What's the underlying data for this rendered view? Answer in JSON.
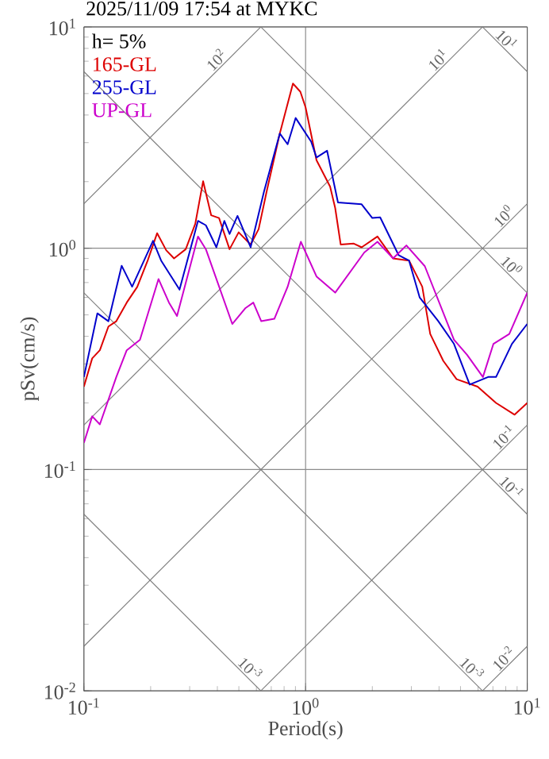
{
  "chart_data": {
    "type": "line",
    "title": "2025/11/09 17:54 at MYKC",
    "xlabel": "Period(s)",
    "ylabel": "pSv(cm/s)",
    "log": "xy",
    "grid": true,
    "legend": "top left",
    "xlim": [
      0.1,
      10
    ],
    "ylim": [
      0.01,
      10
    ],
    "xticks": [
      {
        "value": 0.1,
        "label": "10$^{-1}$"
      },
      {
        "value": 1,
        "label": "10$^{0}$"
      },
      {
        "value": 10,
        "label": "10$^{1}$"
      }
    ],
    "yticks": [
      {
        "value": 0.01,
        "label": "10$^{-2}$"
      },
      {
        "value": 0.1,
        "label": "10$^{-1}$"
      },
      {
        "value": 1,
        "label": "10$^{0}$"
      },
      {
        "value": 10,
        "label": "10$^{1}$"
      }
    ],
    "series": [
      {
        "color": "#808080",
        "x": [
          6.283,
          10
        ],
        "values": [
          0.01,
          0.0159
        ]
      },
      {
        "color": "#808080",
        "x": [
          0.6283,
          10
        ],
        "values": [
          0.01,
          0.159
        ]
      },
      {
        "color": "#808080",
        "x": [
          0.1,
          10
        ],
        "values": [
          0.0159,
          1.59
        ]
      },
      {
        "color": "#808080",
        "x": [
          0.1,
          6.283
        ],
        "values": [
          0.159,
          10
        ]
      },
      {
        "color": "#808080",
        "x": [
          0.1,
          0.6283
        ],
        "values": [
          1.59,
          10
        ]
      },
      {
        "color": "#808080",
        "x": [
          0.1,
          0.6283
        ],
        "values": [
          0.0628,
          0.01
        ]
      },
      {
        "color": "#808080",
        "x": [
          0.1,
          6.283
        ],
        "values": [
          0.6283,
          0.01
        ]
      },
      {
        "color": "#808080",
        "x": [
          0.1,
          10
        ],
        "values": [
          6.283,
          0.0628
        ]
      },
      {
        "color": "#808080",
        "x": [
          0.6283,
          10
        ],
        "values": [
          10,
          0.6283
        ]
      },
      {
        "color": "#808080",
        "x": [
          6.283,
          10
        ],
        "values": [
          10,
          6.283
        ]
      },
      {
        "name": "165-GL",
        "color": "#dd0000",
        "x": [
          0.1,
          0.109,
          0.118,
          0.129,
          0.14,
          0.156,
          0.174,
          0.194,
          0.214,
          0.235,
          0.255,
          0.288,
          0.318,
          0.345,
          0.375,
          0.407,
          0.454,
          0.499,
          0.565,
          0.614,
          0.667,
          0.765,
          0.877,
          0.947,
          1.0,
          1.12,
          1.29,
          1.36,
          1.44,
          1.65,
          1.79,
          2.11,
          2.48,
          2.93,
          3.36,
          3.65,
          4.18,
          4.8,
          5.97,
          7.23,
          8.77,
          10
        ],
        "values": [
          0.237,
          0.318,
          0.346,
          0.443,
          0.468,
          0.568,
          0.669,
          0.88,
          1.17,
          0.98,
          0.9,
          0.99,
          1.29,
          2.01,
          1.41,
          1.37,
          0.99,
          1.18,
          1.04,
          1.22,
          1.8,
          3.3,
          5.55,
          5.1,
          4.33,
          2.5,
          1.9,
          1.52,
          1.04,
          1.05,
          1.01,
          1.13,
          0.9,
          0.88,
          0.67,
          0.41,
          0.31,
          0.256,
          0.237,
          0.2,
          0.177,
          0.2
        ]
      },
      {
        "name": "255-GL",
        "color": "#0000cc",
        "x": [
          0.1,
          0.115,
          0.129,
          0.148,
          0.165,
          0.205,
          0.223,
          0.27,
          0.327,
          0.355,
          0.396,
          0.43,
          0.454,
          0.493,
          0.565,
          0.649,
          0.765,
          0.83,
          0.902,
          1.06,
          1.12,
          1.25,
          1.4,
          1.79,
          2.0,
          2.17,
          2.63,
          2.93,
          3.27,
          3.96,
          4.67,
          5.5,
          6.66,
          7.23,
          8.53,
          10
        ],
        "values": [
          0.262,
          0.508,
          0.468,
          0.834,
          0.67,
          1.08,
          0.88,
          0.65,
          1.33,
          1.27,
          1.01,
          1.33,
          1.16,
          1.4,
          1.01,
          1.8,
          3.3,
          2.95,
          3.88,
          3.03,
          2.57,
          2.76,
          1.61,
          1.58,
          1.37,
          1.38,
          0.93,
          0.88,
          0.6,
          0.47,
          0.37,
          0.242,
          0.262,
          0.262,
          0.37,
          0.455
        ]
      },
      {
        "name": "UP-GL",
        "color": "#cc00cc",
        "x": [
          0.1,
          0.109,
          0.118,
          0.14,
          0.156,
          0.179,
          0.217,
          0.242,
          0.263,
          0.327,
          0.355,
          0.467,
          0.536,
          0.581,
          0.631,
          0.723,
          0.83,
          0.952,
          1.12,
          1.36,
          1.84,
          2.11,
          2.48,
          2.85,
          3.45,
          4.67,
          5.35,
          6.31,
          7.04,
          8.3,
          10
        ],
        "values": [
          0.132,
          0.174,
          0.16,
          0.262,
          0.346,
          0.386,
          0.726,
          0.568,
          0.494,
          1.13,
          0.99,
          0.455,
          0.537,
          0.568,
          0.468,
          0.48,
          0.67,
          1.07,
          0.746,
          0.63,
          0.957,
          1.07,
          0.9,
          1.03,
          0.83,
          0.386,
          0.33,
          0.262,
          0.37,
          0.41,
          0.63
        ]
      }
    ],
    "annotations": [
      "h= 5%",
      {
        "text": "10$^{2}$",
        "x": 0.42,
        "y": 6.7
      },
      {
        "text": "10$^{1}$",
        "x": 4.2,
        "y": 6.7
      },
      {
        "text": "10$^{1}$",
        "x": 7.6,
        "y": 8.27
      },
      {
        "text": "10$^{0}$",
        "x": 8.3,
        "y": 1.32
      },
      {
        "text": "10$^{0}$",
        "x": 8.0,
        "y": 0.785
      },
      {
        "text": "10$^{-1}$",
        "x": 8.3,
        "y": 0.132
      },
      {
        "text": "10$^{-1}$",
        "x": 8.0,
        "y": 0.0785
      },
      {
        "text": "10$^{-2}$",
        "x": 8.3,
        "y": 0.0132
      },
      {
        "text": "10$^{-3}$",
        "x": 5.3,
        "y": 0.0119
      },
      {
        "text": "10$^{-3}$",
        "x": 0.53,
        "y": 0.0119
      }
    ]
  }
}
